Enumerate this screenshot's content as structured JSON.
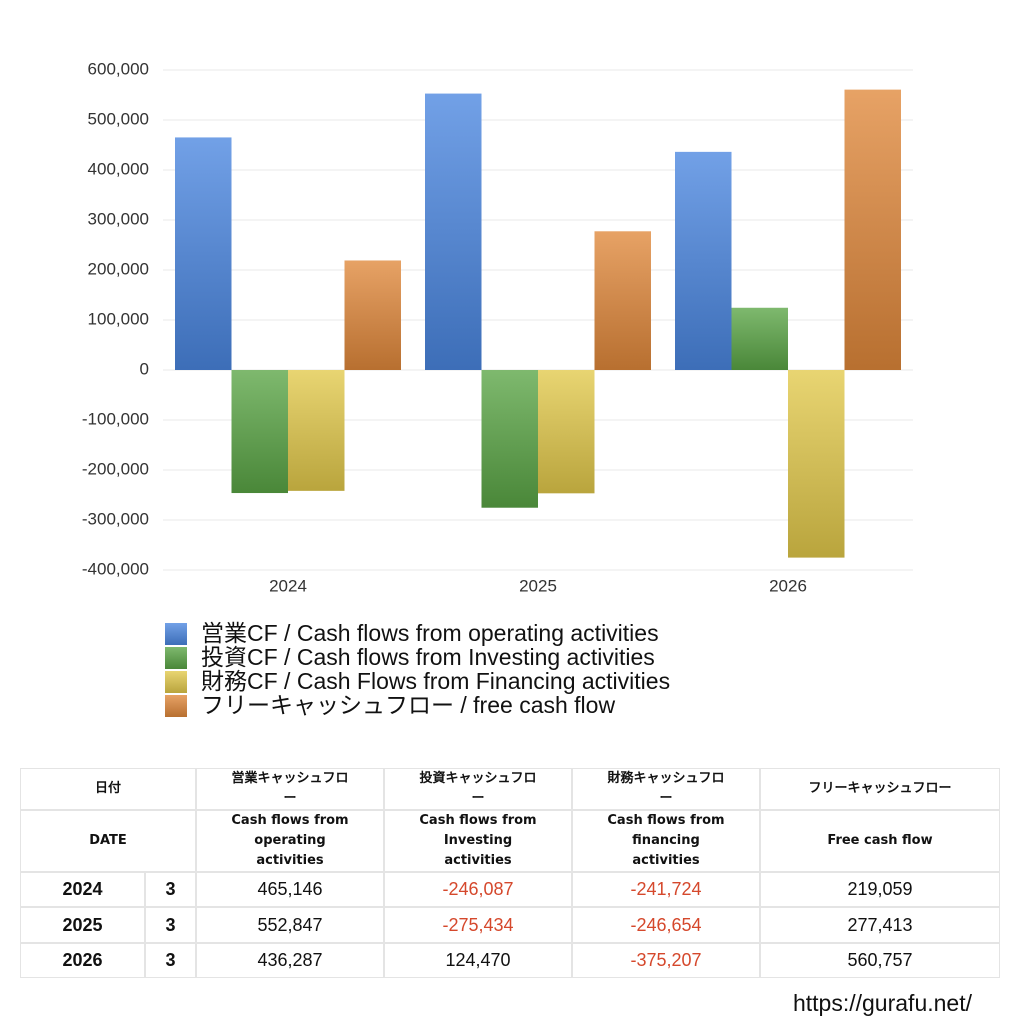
{
  "chart_data": {
    "type": "bar",
    "categories": [
      "2024",
      "2025",
      "2026"
    ],
    "series": [
      {
        "name": "営業CF / Cash flows from operating activities",
        "color": "#4a86e0",
        "values": [
          465146,
          552847,
          436287
        ]
      },
      {
        "name": "投資CF / Cash flows from Investing activities",
        "color": "#5aa545",
        "values": [
          -246087,
          -275434,
          124470
        ]
      },
      {
        "name": "財務CF / Cash Flows from Financing activities",
        "color": "#e2c94a",
        "values": [
          -241724,
          -246654,
          -375207
        ]
      },
      {
        "name": "フリーキャッシュフロー / free cash flow",
        "color": "#e0883a",
        "values": [
          219059,
          277413,
          560757
        ]
      }
    ],
    "ylim": [
      -400000,
      600000
    ],
    "yticks": [
      {
        "value": -400000,
        "label": "-400,000"
      },
      {
        "value": -300000,
        "label": "-300,000"
      },
      {
        "value": -200000,
        "label": "-200,000"
      },
      {
        "value": -100000,
        "label": "-100,000"
      },
      0,
      {
        "value": 100000,
        "label": "100,000"
      },
      {
        "value": 200000,
        "label": "200,000"
      },
      {
        "value": 300000,
        "label": "300,000"
      },
      {
        "value": 400000,
        "label": "400,000"
      },
      {
        "value": 500000,
        "label": "500,000"
      },
      {
        "value": 600000,
        "label": "600,000"
      }
    ],
    "grid": true
  },
  "table": {
    "header": [
      [
        "日付",
        "営業キャッシュフロー",
        "投資キャッシュフロー",
        "財務キャッシュフロー",
        "フリーキャッシュフロー"
      ],
      [
        "DATE",
        "Cash flows from operating activities",
        "Cash flows from Investing activities",
        "Cash flows from financing activities",
        "Free cash flow"
      ]
    ],
    "rows": [
      [
        "2024",
        "3",
        "465,146",
        "-246,087",
        "-241,724",
        "219,059"
      ],
      [
        "2025",
        "3",
        "552,847",
        "-275,434",
        "-246,654",
        "277,413"
      ],
      [
        "2026",
        "3",
        "436,287",
        "124,470",
        "-375,207",
        "560,757"
      ]
    ]
  },
  "footer": "https://gurafu.net/"
}
